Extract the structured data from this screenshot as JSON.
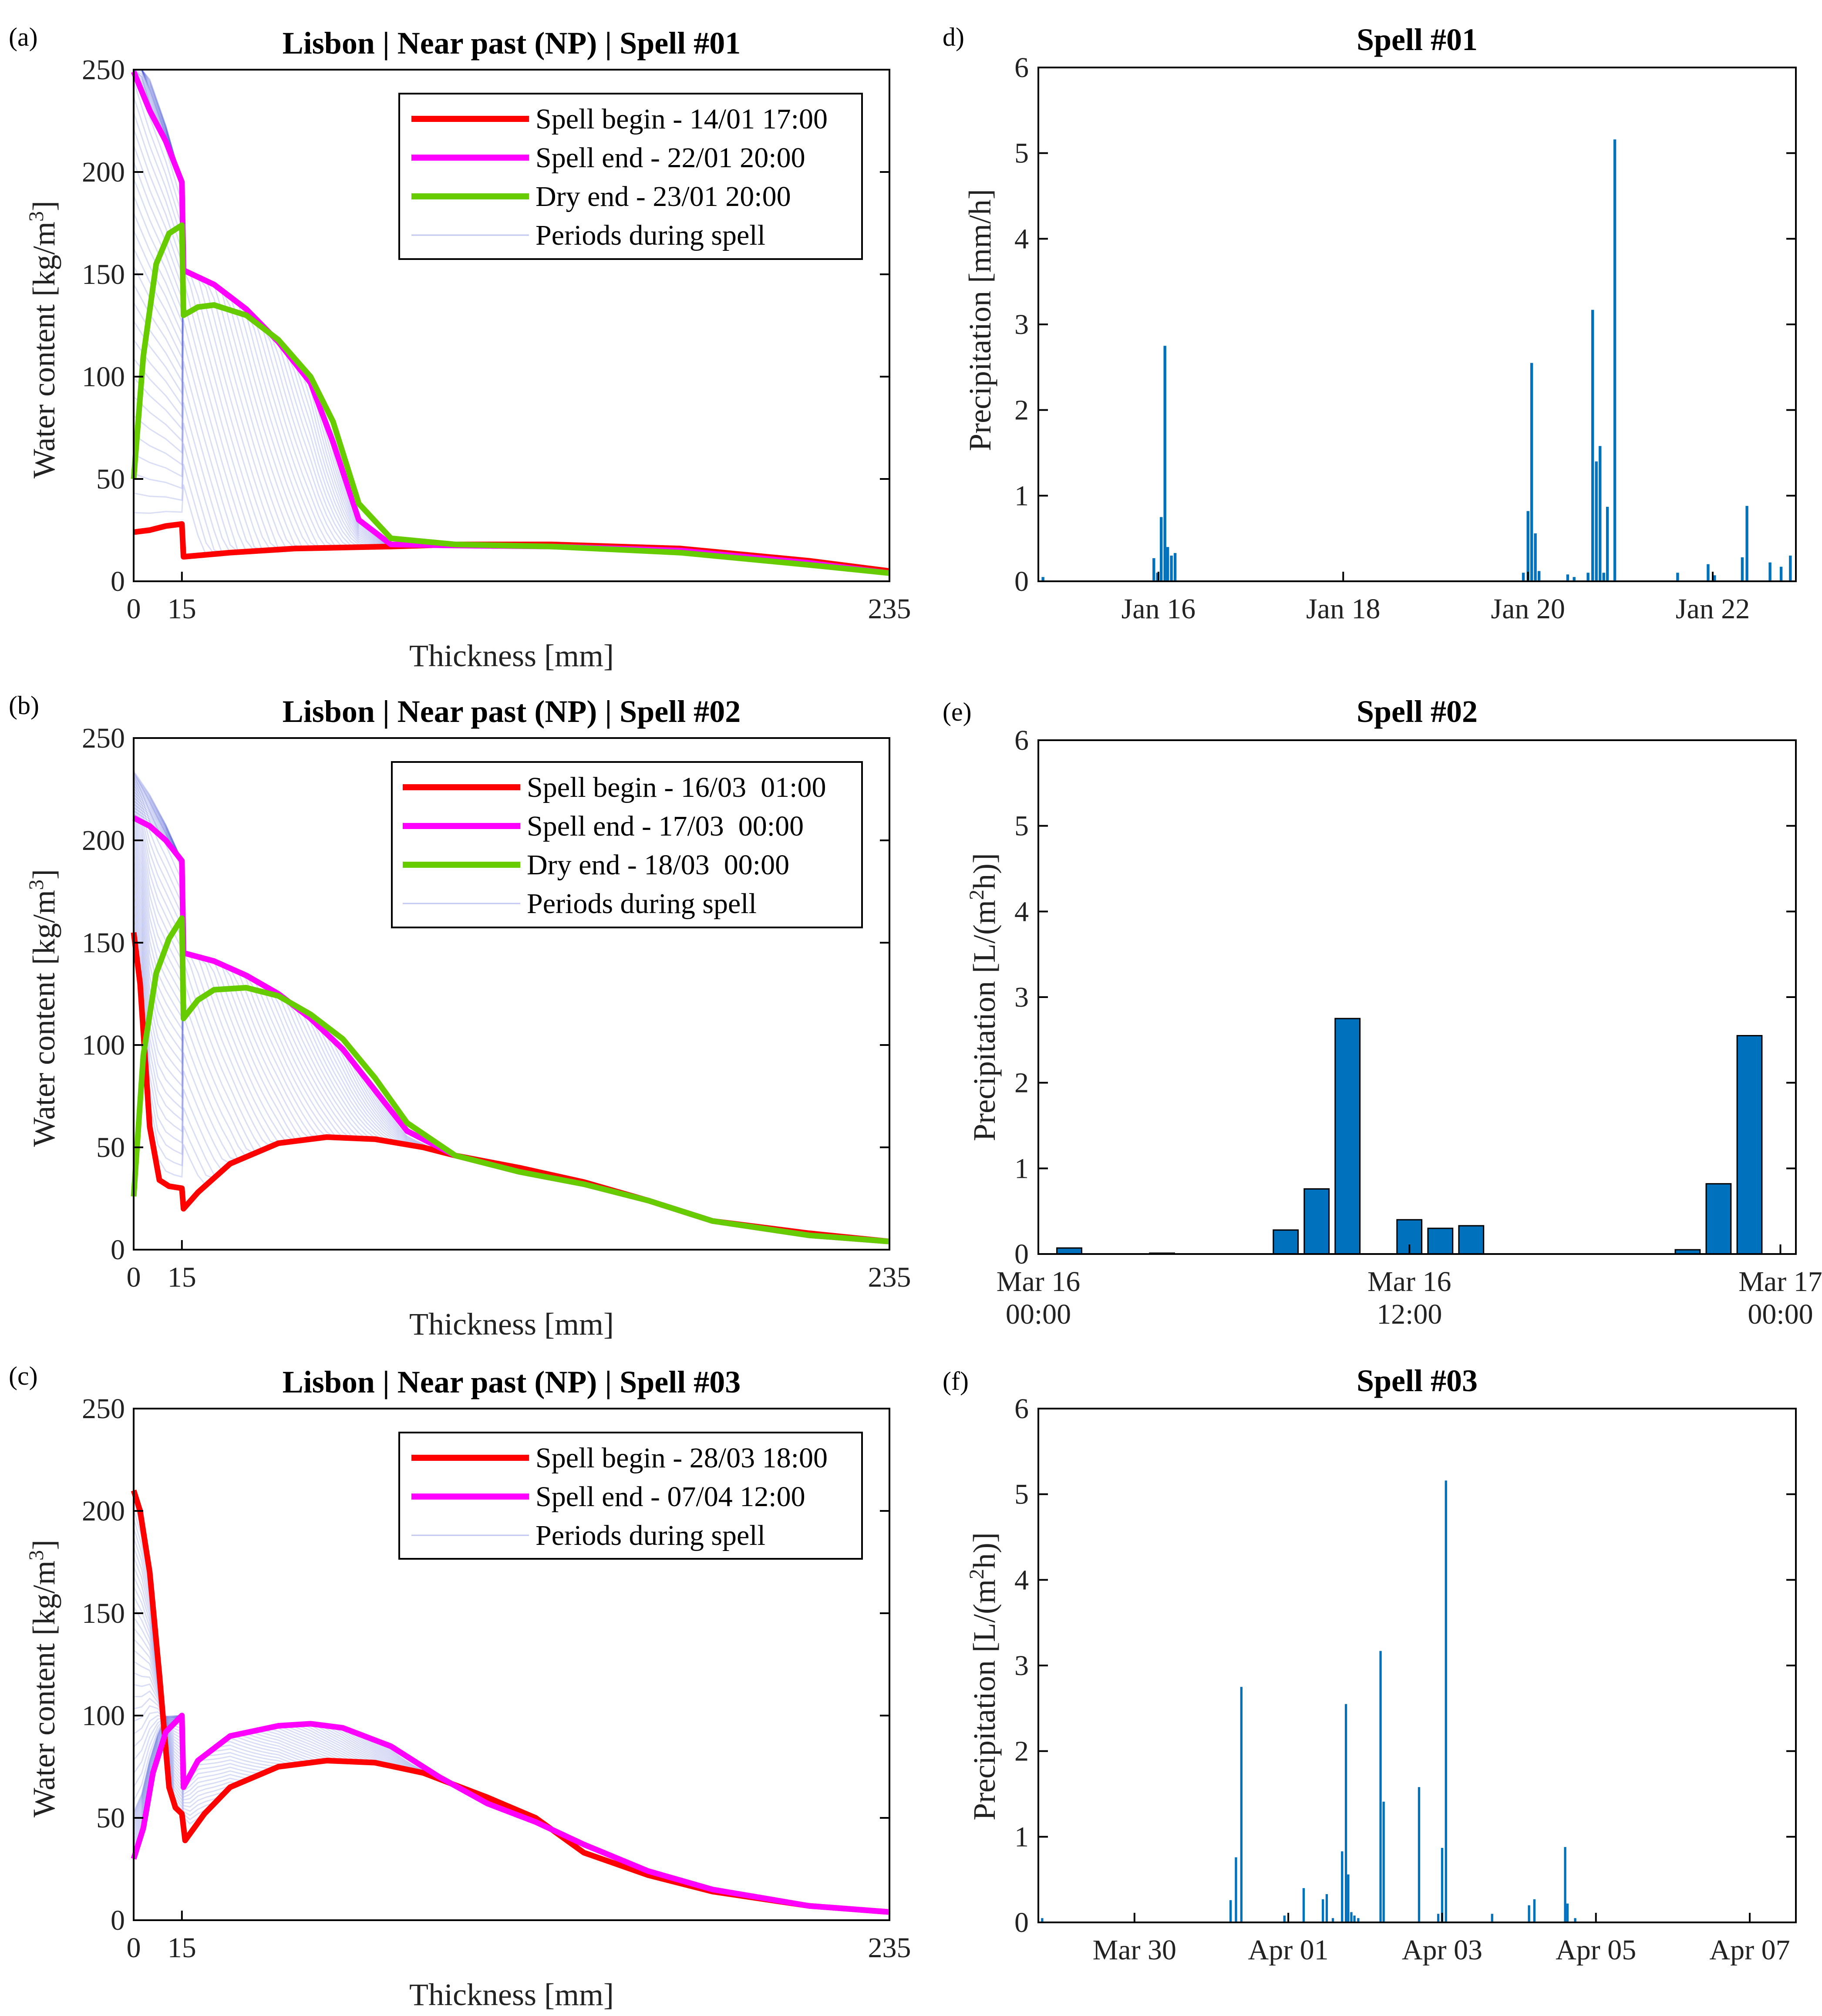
{
  "colors": {
    "begin": "#ff0000",
    "end": "#ff00ff",
    "dry": "#66cc00",
    "periods": "#3344cc",
    "bar": "#0072bd"
  },
  "chart_data": [
    {
      "id": "a",
      "panel_label": "(a)",
      "type": "line",
      "title": "Lisbon | Near past (NP) | Spell #01",
      "xlabel": "Thickness [mm]",
      "ylabel": "Water content [kg/m³]",
      "xlim": [
        0,
        235
      ],
      "ylim": [
        0,
        250
      ],
      "xticks": [
        0,
        15,
        235
      ],
      "yticks": [
        0,
        50,
        100,
        150,
        200,
        250
      ],
      "legend_position": "top-right",
      "series": [
        {
          "name": "Spell begin - 14/01 17:00",
          "role": "begin",
          "x": [
            0,
            5,
            10,
            15,
            15.5,
            30,
            50,
            80,
            100,
            130,
            170,
            210,
            235
          ],
          "y": [
            24,
            25,
            27,
            28,
            12,
            14,
            16,
            17,
            18,
            18,
            16,
            10,
            5
          ]
        },
        {
          "name": "Spell end - 22/01 20:00",
          "role": "end",
          "x": [
            0,
            5,
            10,
            15,
            15.5,
            25,
            35,
            45,
            55,
            62,
            70,
            80,
            100,
            130,
            170,
            210,
            235
          ],
          "y": [
            249,
            230,
            215,
            195,
            152,
            145,
            133,
            117,
            97,
            68,
            30,
            18,
            17.5,
            17,
            15,
            9,
            4
          ]
        },
        {
          "name": "Dry end - 23/01 20:00",
          "role": "dry",
          "x": [
            0,
            3,
            7,
            11,
            15,
            15.5,
            20,
            25,
            35,
            45,
            55,
            62,
            70,
            80,
            100,
            130,
            170,
            210,
            235
          ],
          "y": [
            50,
            110,
            155,
            170,
            174,
            130,
            134,
            135,
            130,
            118,
            100,
            78,
            38,
            21,
            18,
            17,
            14,
            8,
            4
          ]
        }
      ],
      "periods_label": "Periods during spell"
    },
    {
      "id": "b",
      "panel_label": "(b)",
      "type": "line",
      "title": "Lisbon | Near past (NP) | Spell #02",
      "xlabel": "Thickness [mm]",
      "ylabel": "Water content [kg/m³]",
      "xlim": [
        0,
        235
      ],
      "ylim": [
        0,
        250
      ],
      "xticks": [
        0,
        15,
        235
      ],
      "yticks": [
        0,
        50,
        100,
        150,
        200,
        250
      ],
      "legend_position": "top-right",
      "series": [
        {
          "name": "Spell begin - 16/03  01:00",
          "role": "begin",
          "x": [
            0,
            2,
            5,
            8,
            11,
            15,
            15.5,
            20,
            30,
            45,
            60,
            75,
            90,
            100,
            120,
            140,
            160,
            180,
            210,
            235
          ],
          "y": [
            155,
            130,
            60,
            34,
            31,
            30,
            20,
            28,
            42,
            52,
            55,
            54,
            50,
            46,
            40,
            33,
            24,
            14,
            8,
            4
          ]
        },
        {
          "name": "Spell end - 17/03  00:00",
          "role": "end",
          "x": [
            0,
            5,
            10,
            15,
            15.5,
            25,
            35,
            45,
            55,
            65,
            75,
            85,
            100,
            120,
            140,
            160,
            180,
            210,
            235
          ],
          "y": [
            211,
            207,
            200,
            190,
            145,
            141,
            134,
            125,
            113,
            98,
            78,
            58,
            46,
            38,
            32,
            24,
            14,
            7,
            4
          ]
        },
        {
          "name": "Dry end - 18/03  00:00",
          "role": "dry",
          "x": [
            0,
            3,
            7,
            11,
            15,
            15.5,
            20,
            25,
            35,
            45,
            55,
            65,
            75,
            85,
            100,
            120,
            140,
            160,
            180,
            210,
            235
          ],
          "y": [
            26,
            95,
            135,
            152,
            162,
            113,
            122,
            127,
            128,
            124,
            115,
            103,
            84,
            62,
            46,
            38,
            32,
            24,
            14,
            7,
            4
          ]
        }
      ],
      "periods_label": "Periods during spell"
    },
    {
      "id": "c",
      "panel_label": "(c)",
      "type": "line",
      "title": "Lisbon | Near past (NP) | Spell #03",
      "xlabel": "Thickness [mm]",
      "ylabel": "Water content [kg/m³]",
      "xlim": [
        0,
        235
      ],
      "ylim": [
        0,
        250
      ],
      "xticks": [
        0,
        15,
        235
      ],
      "yticks": [
        0,
        50,
        100,
        150,
        200,
        250
      ],
      "legend_position": "top-right",
      "series": [
        {
          "name": "Spell begin - 28/03 18:00",
          "role": "begin",
          "x": [
            0,
            2,
            5,
            8,
            11,
            13,
            15,
            16,
            22,
            30,
            45,
            60,
            75,
            90,
            110,
            125,
            140,
            160,
            180,
            210,
            235
          ],
          "y": [
            210,
            200,
            170,
            120,
            65,
            55,
            52,
            39,
            52,
            65,
            75,
            78,
            77,
            72,
            60,
            50,
            33,
            22,
            14,
            7,
            4
          ]
        },
        {
          "name": "Spell end - 07/04 12:00",
          "role": "end",
          "x": [
            0,
            3,
            6,
            10,
            15,
            15.5,
            20,
            30,
            45,
            55,
            65,
            80,
            95,
            110,
            125,
            140,
            160,
            180,
            210,
            235
          ],
          "y": [
            30,
            45,
            72,
            92,
            100,
            65,
            78,
            90,
            95,
            96,
            94,
            85,
            70,
            57,
            48,
            37,
            24,
            15,
            7,
            4
          ]
        }
      ],
      "periods_label": "Periods during spell"
    },
    {
      "id": "d",
      "panel_label": "d)",
      "type": "bar",
      "title": "Spell #01",
      "xlabel": "",
      "ylabel": "Precipitation [mm/h]",
      "xlim_days": [
        14.7,
        22.9
      ],
      "ylim": [
        0,
        6
      ],
      "yticks": [
        0,
        1,
        2,
        3,
        4,
        5,
        6
      ],
      "xtick_labels": [
        "Jan 16",
        "Jan 18",
        "Jan 20",
        "Jan 22"
      ],
      "xtick_days": [
        16,
        18,
        20,
        22
      ],
      "bars_days": [
        14.75,
        15.95,
        15.99,
        16.03,
        16.07,
        16.1,
        16.14,
        16.18,
        19.95,
        20.0,
        20.04,
        20.08,
        20.12,
        20.43,
        20.5,
        20.65,
        20.7,
        20.74,
        20.78,
        20.82,
        20.86,
        20.94,
        21.62,
        21.95,
        22.02,
        22.32,
        22.37,
        22.62,
        22.74,
        22.84
      ],
      "bars_values": [
        0.05,
        0.27,
        0.1,
        0.75,
        2.75,
        0.4,
        0.3,
        0.33,
        0.1,
        0.82,
        2.55,
        0.56,
        0.12,
        0.08,
        0.05,
        0.1,
        3.17,
        1.4,
        1.58,
        0.1,
        0.87,
        5.16,
        0.1,
        0.2,
        0.07,
        0.28,
        0.88,
        0.22,
        0.17,
        0.3
      ],
      "bar_width_days": 0.03
    },
    {
      "id": "e",
      "panel_label": "(e)",
      "type": "bar",
      "title": "Spell #02",
      "xlabel": "",
      "ylabel": "Precipitation [L/(m²h)]",
      "xlim_hours": [
        0,
        24.5
      ],
      "ylim": [
        0,
        6
      ],
      "yticks": [
        0,
        1,
        2,
        3,
        4,
        5,
        6
      ],
      "xtick_hours": [
        0,
        12,
        24
      ],
      "xtick_lines": [
        [
          "Mar 16",
          "00:00"
        ],
        [
          "Mar 16",
          "12:00"
        ],
        [
          "Mar 17",
          "00:00"
        ]
      ],
      "bars_hours": [
        1,
        4,
        8,
        9,
        10,
        12,
        13,
        14,
        21,
        22,
        23
      ],
      "bars_values": [
        0.07,
        0.01,
        0.28,
        0.76,
        2.75,
        0.4,
        0.3,
        0.33,
        0.05,
        0.82,
        2.55
      ],
      "bar_width_hours": 0.8
    },
    {
      "id": "f",
      "panel_label": "(f)",
      "type": "bar",
      "title": "Spell #03",
      "xlabel": "",
      "ylabel": "Precipitation [L/(m²h)]",
      "xlim_days": [
        28.75,
        38.6
      ],
      "ylim": [
        0,
        6
      ],
      "yticks": [
        0,
        1,
        2,
        3,
        4,
        5,
        6
      ],
      "xtick_labels": [
        "Mar 30",
        "Apr 01",
        "Apr 03",
        "Apr 05",
        "Apr 07"
      ],
      "xtick_days": [
        30,
        32,
        34,
        36,
        38
      ],
      "bars_days": [
        28.8,
        31.25,
        31.32,
        31.39,
        31.95,
        32.2,
        32.45,
        32.5,
        32.58,
        32.7,
        32.75,
        32.78,
        32.82,
        32.86,
        32.91,
        33.2,
        33.24,
        33.7,
        33.95,
        34.0,
        34.05,
        34.65,
        35.13,
        35.2,
        35.6,
        35.63,
        35.73
      ],
      "bars_values": [
        0.05,
        0.26,
        0.76,
        2.75,
        0.08,
        0.4,
        0.27,
        0.33,
        0.05,
        0.83,
        2.55,
        0.56,
        0.12,
        0.08,
        0.05,
        3.17,
        1.41,
        1.58,
        0.1,
        0.87,
        5.16,
        0.1,
        0.2,
        0.27,
        0.88,
        0.22,
        0.05
      ],
      "bar_width_days": 0.03
    }
  ]
}
